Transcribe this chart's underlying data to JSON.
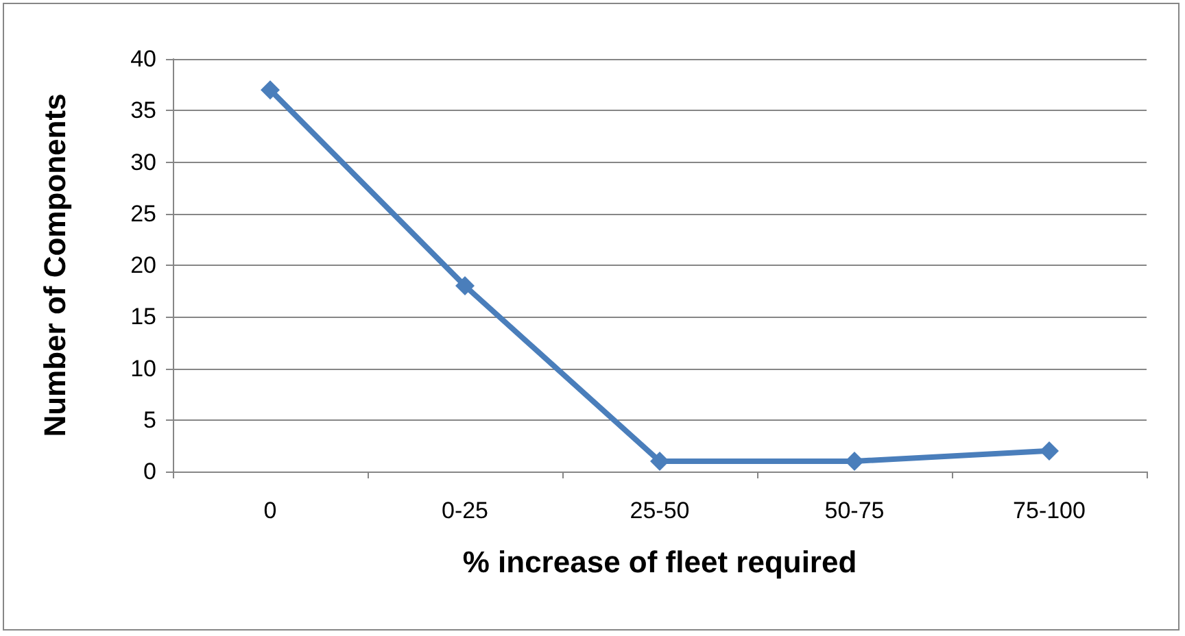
{
  "chart_data": {
    "type": "line",
    "xlabel": "% increase of fleet required",
    "ylabel": "Number of Components",
    "categories": [
      "0",
      "0-25",
      "25-50",
      "50-75",
      "75-100"
    ],
    "series": [
      {
        "color": "#4a7ebb",
        "values": [
          37,
          18,
          1,
          1,
          2
        ]
      }
    ],
    "ylim": [
      0,
      40
    ],
    "yticks": [
      0,
      5,
      10,
      15,
      20,
      25,
      30,
      35,
      40
    ],
    "grid": "y",
    "marker": "diamond",
    "line_style": "solid"
  }
}
